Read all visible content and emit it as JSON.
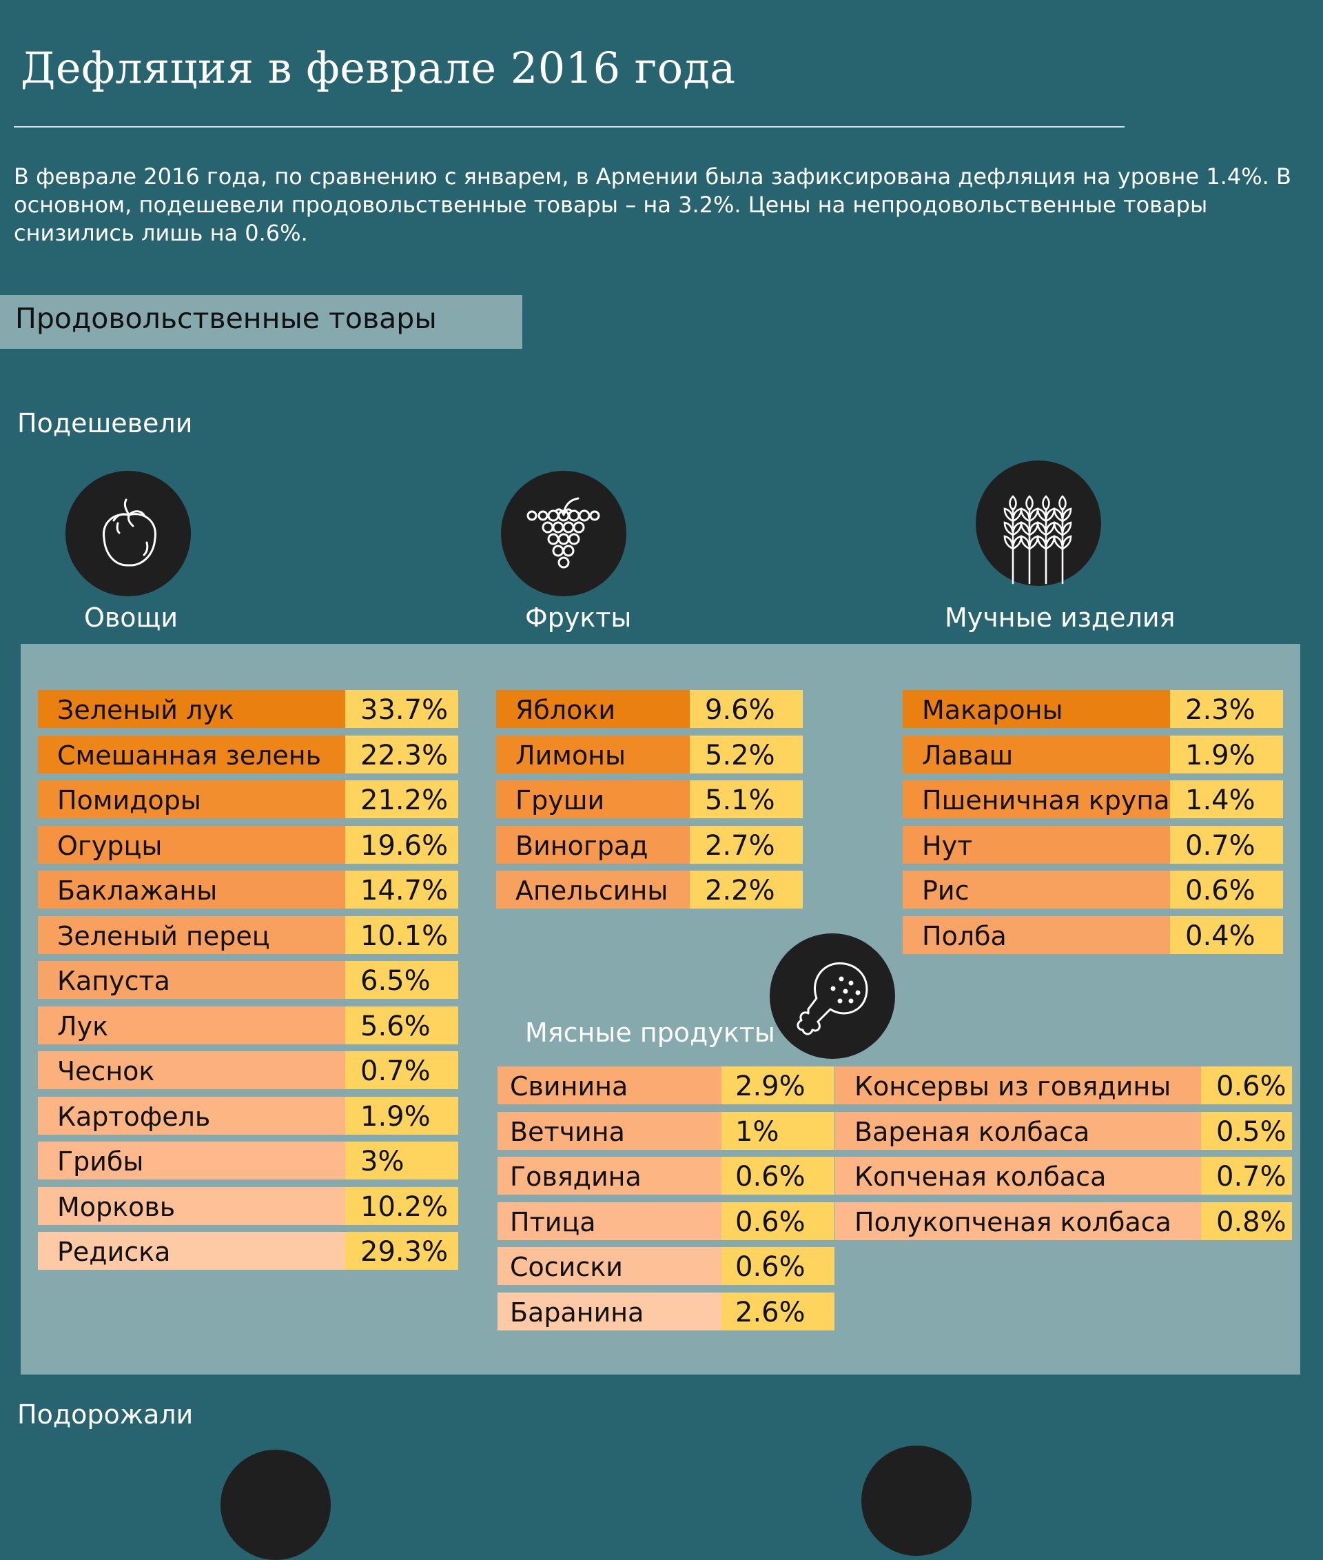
{
  "title": "Дефляция в феврале 2016 года",
  "intro": "В феврале 2016 года, по сравнению с январем, в Армении была зафиксирована дефляция на уровне 1.4%. В основном, подешевели продовольственные товары – на 3.2%. Цены на непродовольственные товары снизились лишь на 0.6%.",
  "section": "Продовольственные товары",
  "cheaper_label": "Подешевели",
  "pricier_label": "Подорожали",
  "colors": {
    "background": "#27646f",
    "panel": "#85a9ad",
    "value_cell": "#fed45f",
    "icon_circle": "#1f1f1f"
  },
  "categories": {
    "vegetables": {
      "label": "Овощи",
      "icon": "tomato-icon",
      "rows": [
        {
          "name": "Зеленый лук",
          "value": "33.7%",
          "color": "#ea800f"
        },
        {
          "name": "Смешанная зелень",
          "value": "22.3%",
          "color": "#ee8518"
        },
        {
          "name": "Помидоры",
          "value": "21.2%",
          "color": "#f38e2f"
        },
        {
          "name": "Огурцы",
          "value": "19.6%",
          "color": "#f59340"
        },
        {
          "name": "Баклажаны",
          "value": "14.7%",
          "color": "#f6994e"
        },
        {
          "name": "Зеленый перец",
          "value": "10.1%",
          "color": "#f8a05d"
        },
        {
          "name": "Капуста",
          "value": "6.5%",
          "color": "#f9a467"
        },
        {
          "name": "Лук",
          "value": "5.6%",
          "color": "#fbab72"
        },
        {
          "name": "Чеснок",
          "value": "0.7%",
          "color": "#fcb07c"
        },
        {
          "name": "Картофель",
          "value": "1.9%",
          "color": "#fdb584"
        },
        {
          "name": "Грибы",
          "value": "3%",
          "color": "#fdb98b"
        },
        {
          "name": "Морковь",
          "value": "10.2%",
          "color": "#fec097"
        },
        {
          "name": "Редиска",
          "value": "29.3%",
          "color": "#fec9a5"
        }
      ]
    },
    "fruits": {
      "label": "Фрукты",
      "icon": "grapes-icon",
      "rows": [
        {
          "name": "Яблоки",
          "value": "9.6%",
          "color": "#ea800f"
        },
        {
          "name": "Лимоны",
          "value": "5.2%",
          "color": "#ef8a24"
        },
        {
          "name": "Груши",
          "value": "5.1%",
          "color": "#f49139"
        },
        {
          "name": "Виноград",
          "value": "2.7%",
          "color": "#f6994e"
        },
        {
          "name": "Апельсины",
          "value": "2.2%",
          "color": "#f8a05d"
        }
      ]
    },
    "flour": {
      "label": "Мучные изделия",
      "icon": "wheat-icon",
      "rows": [
        {
          "name": "Макароны",
          "value": "2.3%",
          "color": "#ea800f"
        },
        {
          "name": "Лаваш",
          "value": "1.9%",
          "color": "#ef8a24"
        },
        {
          "name": "Пшеничная крупа",
          "value": "1.4%",
          "color": "#f49139"
        },
        {
          "name": "Нут",
          "value": "0.7%",
          "color": "#f6994e"
        },
        {
          "name": "Рис",
          "value": "0.6%",
          "color": "#f8a05d"
        },
        {
          "name": "Полба",
          "value": "0.4%",
          "color": "#f9a467"
        }
      ]
    },
    "meat": {
      "label": "Мясные продукты",
      "icon": "chicken-leg-icon",
      "rows": [
        {
          "name": "Свинина",
          "value": "2.9%",
          "color": "#fbab72"
        },
        {
          "name": "Ветчина",
          "value": "1%",
          "color": "#fcb07c"
        },
        {
          "name": "Говядина",
          "value": "0.6%",
          "color": "#fdb584"
        },
        {
          "name": "Птица",
          "value": "0.6%",
          "color": "#fdb98b"
        },
        {
          "name": "Сосиски",
          "value": "0.6%",
          "color": "#fec097"
        },
        {
          "name": "Баранина",
          "value": "2.6%",
          "color": "#fec9a5"
        }
      ],
      "rows2": [
        {
          "name": "Консервы из говядины",
          "value": "0.6%",
          "color": "#fbab72"
        },
        {
          "name": "Вареная колбаса",
          "value": "0.5%",
          "color": "#fcb07c"
        },
        {
          "name": "Копченая колбаса",
          "value": "0.7%",
          "color": "#fdb584"
        },
        {
          "name": "Полукопченая колбаса",
          "value": "0.8%",
          "color": "#fdb98b"
        }
      ]
    }
  }
}
